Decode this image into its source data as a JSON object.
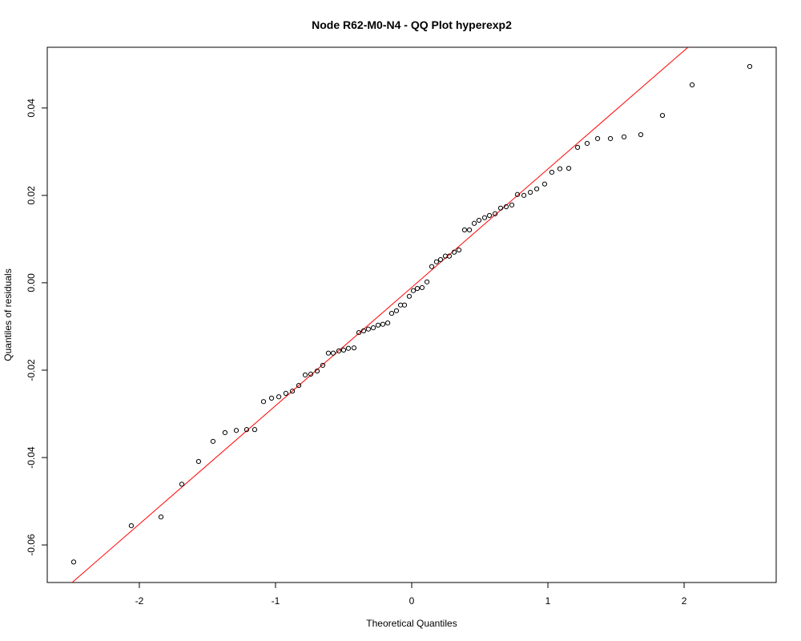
{
  "chart_data": {
    "type": "scatter",
    "title": "Node R62-M0-N4 - QQ Plot hyperexp2",
    "x_label": "Theoretical Quantiles",
    "y_label": "Quantiles of residuals",
    "xlim": [
      -2.676,
      2.676
    ],
    "ylim": [
      -0.0686,
      0.0539
    ],
    "xticks": [
      -2,
      -1,
      0,
      1,
      2
    ],
    "yticks": [
      -0.06,
      -0.04,
      -0.02,
      {
        "value": 0,
        "label": "0.00"
      },
      0.02,
      0.04
    ],
    "grid": false,
    "reference_line": {
      "intercept": -0.00105,
      "slope": 0.02709,
      "color": "#ff0000"
    },
    "series": [
      {
        "color": "#000000",
        "x": [
          -2.482,
          -2.059,
          -1.841,
          -1.688,
          -1.565,
          -1.459,
          -1.371,
          -1.288,
          -1.212,
          -1.153,
          -1.088,
          -1.029,
          -0.976,
          -0.924,
          -0.876,
          -0.829,
          -0.782,
          -0.741,
          -0.694,
          -0.653,
          -0.612,
          -0.576,
          -0.535,
          -0.5,
          -0.465,
          -0.424,
          -0.388,
          -0.353,
          -0.318,
          -0.282,
          -0.247,
          -0.212,
          -0.176,
          -0.147,
          -0.112,
          -0.082,
          -0.053,
          -0.018,
          0.012,
          0.041,
          0.076,
          0.112,
          0.147,
          0.182,
          0.212,
          0.247,
          0.276,
          0.312,
          0.347,
          0.388,
          0.424,
          0.459,
          0.494,
          0.535,
          0.571,
          0.612,
          0.653,
          0.694,
          0.735,
          0.776,
          0.824,
          0.871,
          0.918,
          0.976,
          1.029,
          1.088,
          1.153,
          1.218,
          1.288,
          1.365,
          1.459,
          1.559,
          1.682,
          1.841,
          2.059,
          2.482
        ],
        "values": [
          -0.0639,
          -0.0556,
          -0.0536,
          -0.0461,
          -0.0409,
          -0.0363,
          -0.0343,
          -0.0338,
          -0.0336,
          -0.0336,
          -0.0272,
          -0.0264,
          -0.0261,
          -0.0253,
          -0.0248,
          -0.0235,
          -0.0211,
          -0.0209,
          -0.0202,
          -0.0189,
          -0.0161,
          -0.0161,
          -0.0156,
          -0.0154,
          -0.015,
          -0.0149,
          -0.0114,
          -0.011,
          -0.0106,
          -0.0103,
          -0.0097,
          -0.0095,
          -0.0092,
          -0.007,
          -0.0064,
          -0.0051,
          -0.0051,
          -0.0031,
          -0.0018,
          -0.0013,
          -0.0011,
          0.0002,
          0.0037,
          0.0048,
          0.0053,
          0.0061,
          0.0061,
          0.007,
          0.0075,
          0.0121,
          0.0121,
          0.0136,
          0.0143,
          0.0149,
          0.0154,
          0.0158,
          0.0171,
          0.0174,
          0.0178,
          0.0202,
          0.02,
          0.0207,
          0.0215,
          0.0226,
          0.0253,
          0.0261,
          0.0262,
          0.031,
          0.0319,
          0.033,
          0.033,
          0.0334,
          0.0339,
          0.0383,
          0.0453,
          0.0495
        ]
      }
    ]
  }
}
